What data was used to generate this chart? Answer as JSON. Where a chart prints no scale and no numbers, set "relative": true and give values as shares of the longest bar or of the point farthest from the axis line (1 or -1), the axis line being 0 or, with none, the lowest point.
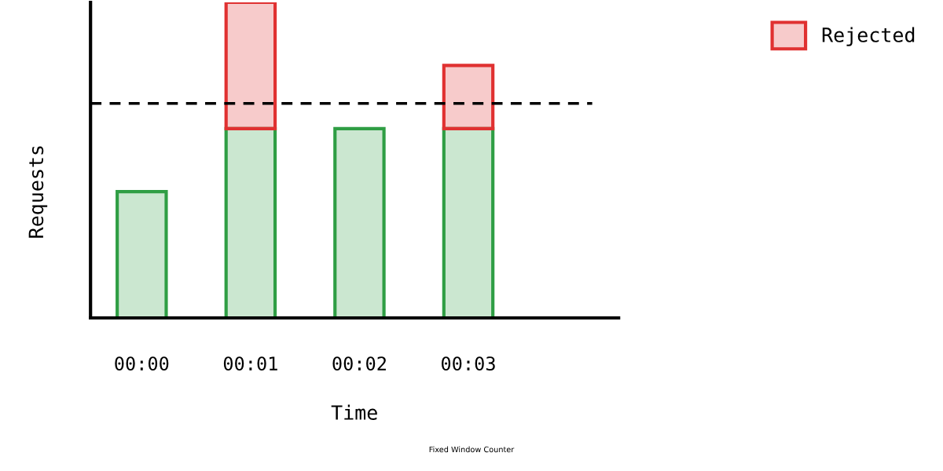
{
  "chart_data": {
    "type": "bar",
    "stacked": true,
    "relative": true,
    "xlabel": "Time",
    "ylabel": "Requests",
    "categories": [
      "00:00",
      "00:01",
      "00:02",
      "00:03"
    ],
    "series": [
      {
        "color": "#2f9e44",
        "values": [
          0.4,
          0.6,
          0.6,
          0.6
        ]
      },
      {
        "name": "Rejected",
        "color": "#e03131",
        "values": [
          null,
          0.4,
          null,
          0.2
        ]
      }
    ],
    "ref_lines": [
      {
        "axis": "y",
        "value": 0.68,
        "color": "#000000",
        "line_style": "dashed"
      }
    ],
    "legend": "top right",
    "tick_labels": "x",
    "annotations": [
      "Fixed Window Counter"
    ]
  }
}
